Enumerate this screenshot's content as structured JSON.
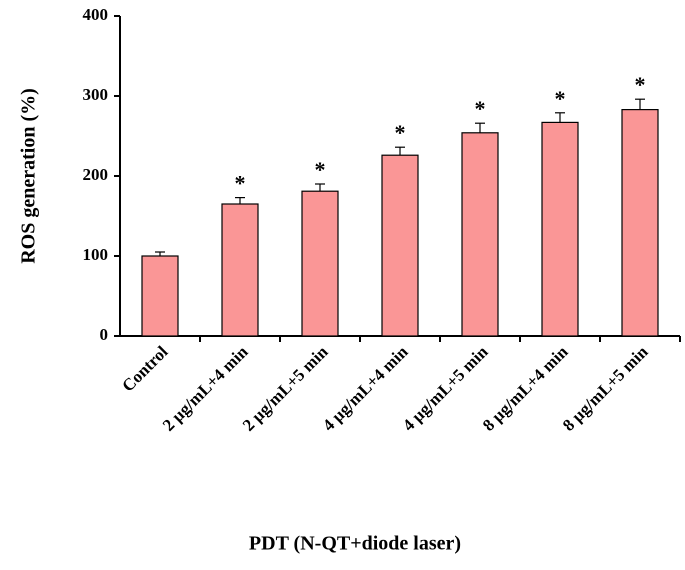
{
  "chart_data": {
    "type": "bar",
    "x_label": "PDT (N-QT+diode laser)",
    "y_label": "ROS generation (%)",
    "categories": [
      "Control",
      "2 µg/mL+4 min",
      "2 µg/mL+5 min",
      "4 µg/mL+4 min",
      "4 µg/mL+5 min",
      "8 µg/mL+4 min",
      "8 µg/mL+5 min"
    ],
    "values": [
      100,
      165,
      181,
      226,
      254,
      267,
      283
    ],
    "errors": [
      5,
      8,
      9,
      10,
      12,
      12,
      13
    ],
    "annotations": [
      null,
      "*",
      "*",
      "*",
      "*",
      "*",
      "*"
    ],
    "color": "#fa9696",
    "ylim": [
      0,
      400
    ],
    "yticks": [
      0,
      100,
      200,
      300,
      400
    ],
    "grid": false
  }
}
